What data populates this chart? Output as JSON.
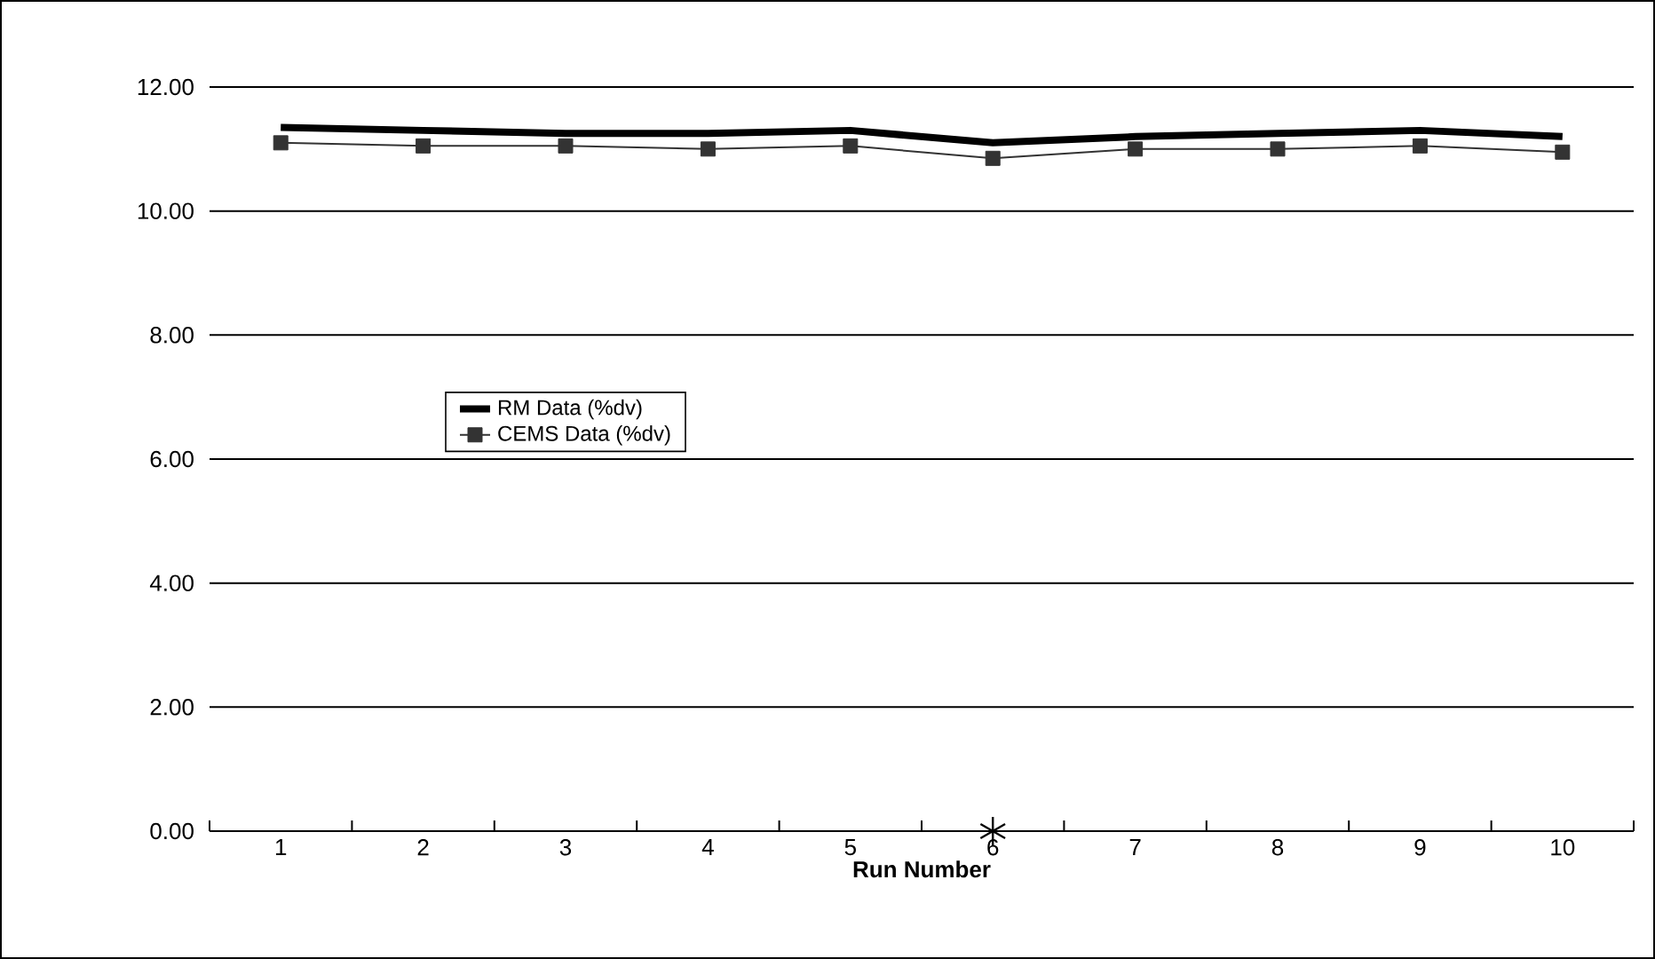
{
  "chart_data": {
    "type": "line",
    "xlabel": "Run Number",
    "categories": [
      "1",
      "2",
      "3",
      "4",
      "5",
      "6",
      "7",
      "8",
      "9",
      "10"
    ],
    "series": [
      {
        "name": "RM Data  (%dv)",
        "color": "#000000",
        "marker": "none",
        "values": [
          11.35,
          11.3,
          11.25,
          11.25,
          11.3,
          11.1,
          11.2,
          11.25,
          11.3,
          11.2
        ]
      },
      {
        "name": "CEMS Data (%dv)",
        "color": "#333333",
        "marker": "square",
        "values": [
          11.1,
          11.05,
          11.05,
          11.0,
          11.05,
          10.85,
          11.0,
          11.0,
          11.05,
          10.95
        ]
      },
      {
        "type": "scatter",
        "color": "#000000",
        "marker": "cross",
        "values": [
          null,
          null,
          null,
          null,
          null,
          0,
          null,
          null,
          null,
          null
        ]
      }
    ],
    "ylim": [
      0,
      12
    ],
    "yticks": [
      {
        "value": 0,
        "label": "0.00"
      },
      {
        "value": 2,
        "label": "2.00"
      },
      {
        "value": 4,
        "label": "4.00"
      },
      {
        "value": 6,
        "label": "6.00"
      },
      {
        "value": 8,
        "label": "8.00"
      },
      {
        "value": 10,
        "label": "10.00"
      },
      {
        "value": 12,
        "label": "12.00"
      }
    ],
    "grid": "y",
    "legend": "center left"
  }
}
